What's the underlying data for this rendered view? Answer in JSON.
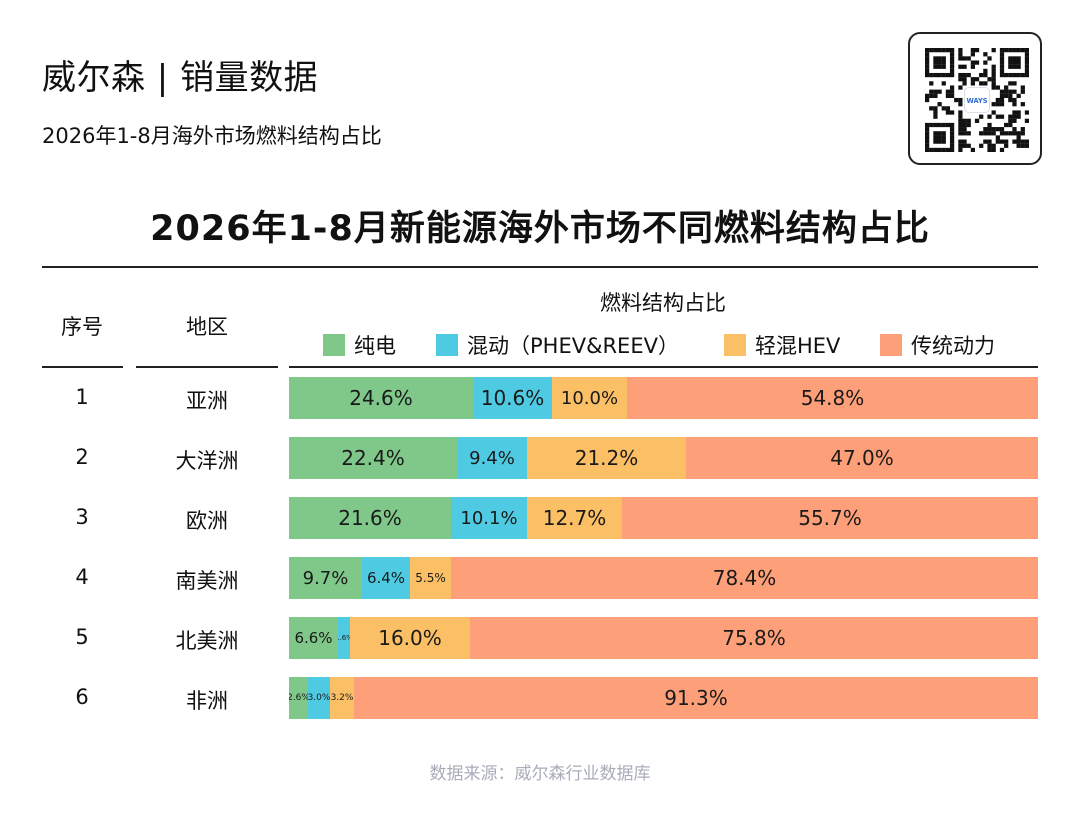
{
  "header": {
    "title": "威尔森 | 销量数据",
    "subtitle": "2026年1-8月海外市场燃料结构占比",
    "qr_logo_text": "WAYS"
  },
  "table": {
    "col_seq": "序号",
    "col_region": "地区",
    "group_header": "燃料结构占比"
  },
  "colors": {
    "pure_ev": "#7fc88a",
    "hybrid": "#4ecbe2",
    "mild_hev": "#fbbf65",
    "ice": "#fd9f78"
  },
  "chart_data": {
    "type": "bar",
    "stacked": true,
    "orientation": "horizontal",
    "percent": true,
    "title": "2026年1-8月新能源海外市场不同燃料结构占比",
    "legend_position": "top",
    "xlim": [
      0,
      100
    ],
    "categories": [
      "亚洲",
      "大洋洲",
      "欧洲",
      "南美洲",
      "北美洲",
      "非洲"
    ],
    "row_numbers": [
      "1",
      "2",
      "3",
      "4",
      "5",
      "6"
    ],
    "series": [
      {
        "name": "纯电",
        "color": "#7fc88a",
        "values": [
          24.6,
          22.4,
          21.6,
          9.7,
          6.6,
          2.6
        ],
        "labels": [
          "24.6%",
          "22.4%",
          "21.6%",
          "9.7%",
          "6.6%",
          "2.6%"
        ]
      },
      {
        "name": "混动（PHEV&REEV）",
        "color": "#4ecbe2",
        "values": [
          10.6,
          9.4,
          10.1,
          6.4,
          1.6,
          3.0
        ],
        "labels": [
          "10.6%",
          "9.4%",
          "10.1%",
          "6.4%",
          "1.6%",
          "3.0%"
        ]
      },
      {
        "name": "轻混HEV",
        "color": "#fbbf65",
        "values": [
          10.0,
          21.2,
          12.7,
          5.5,
          16.0,
          3.2
        ],
        "labels": [
          "10.0%",
          "21.2%",
          "12.7%",
          "5.5%",
          "16.0%",
          "3.2%"
        ]
      },
      {
        "name": "传统动力",
        "color": "#fd9f78",
        "values": [
          54.8,
          47.0,
          55.7,
          78.4,
          75.8,
          91.3
        ],
        "labels": [
          "54.8%",
          "47.0%",
          "55.7%",
          "78.4%",
          "75.8%",
          "91.3%"
        ]
      }
    ]
  },
  "footer": {
    "source": "数据来源：威尔森行业数据库"
  }
}
